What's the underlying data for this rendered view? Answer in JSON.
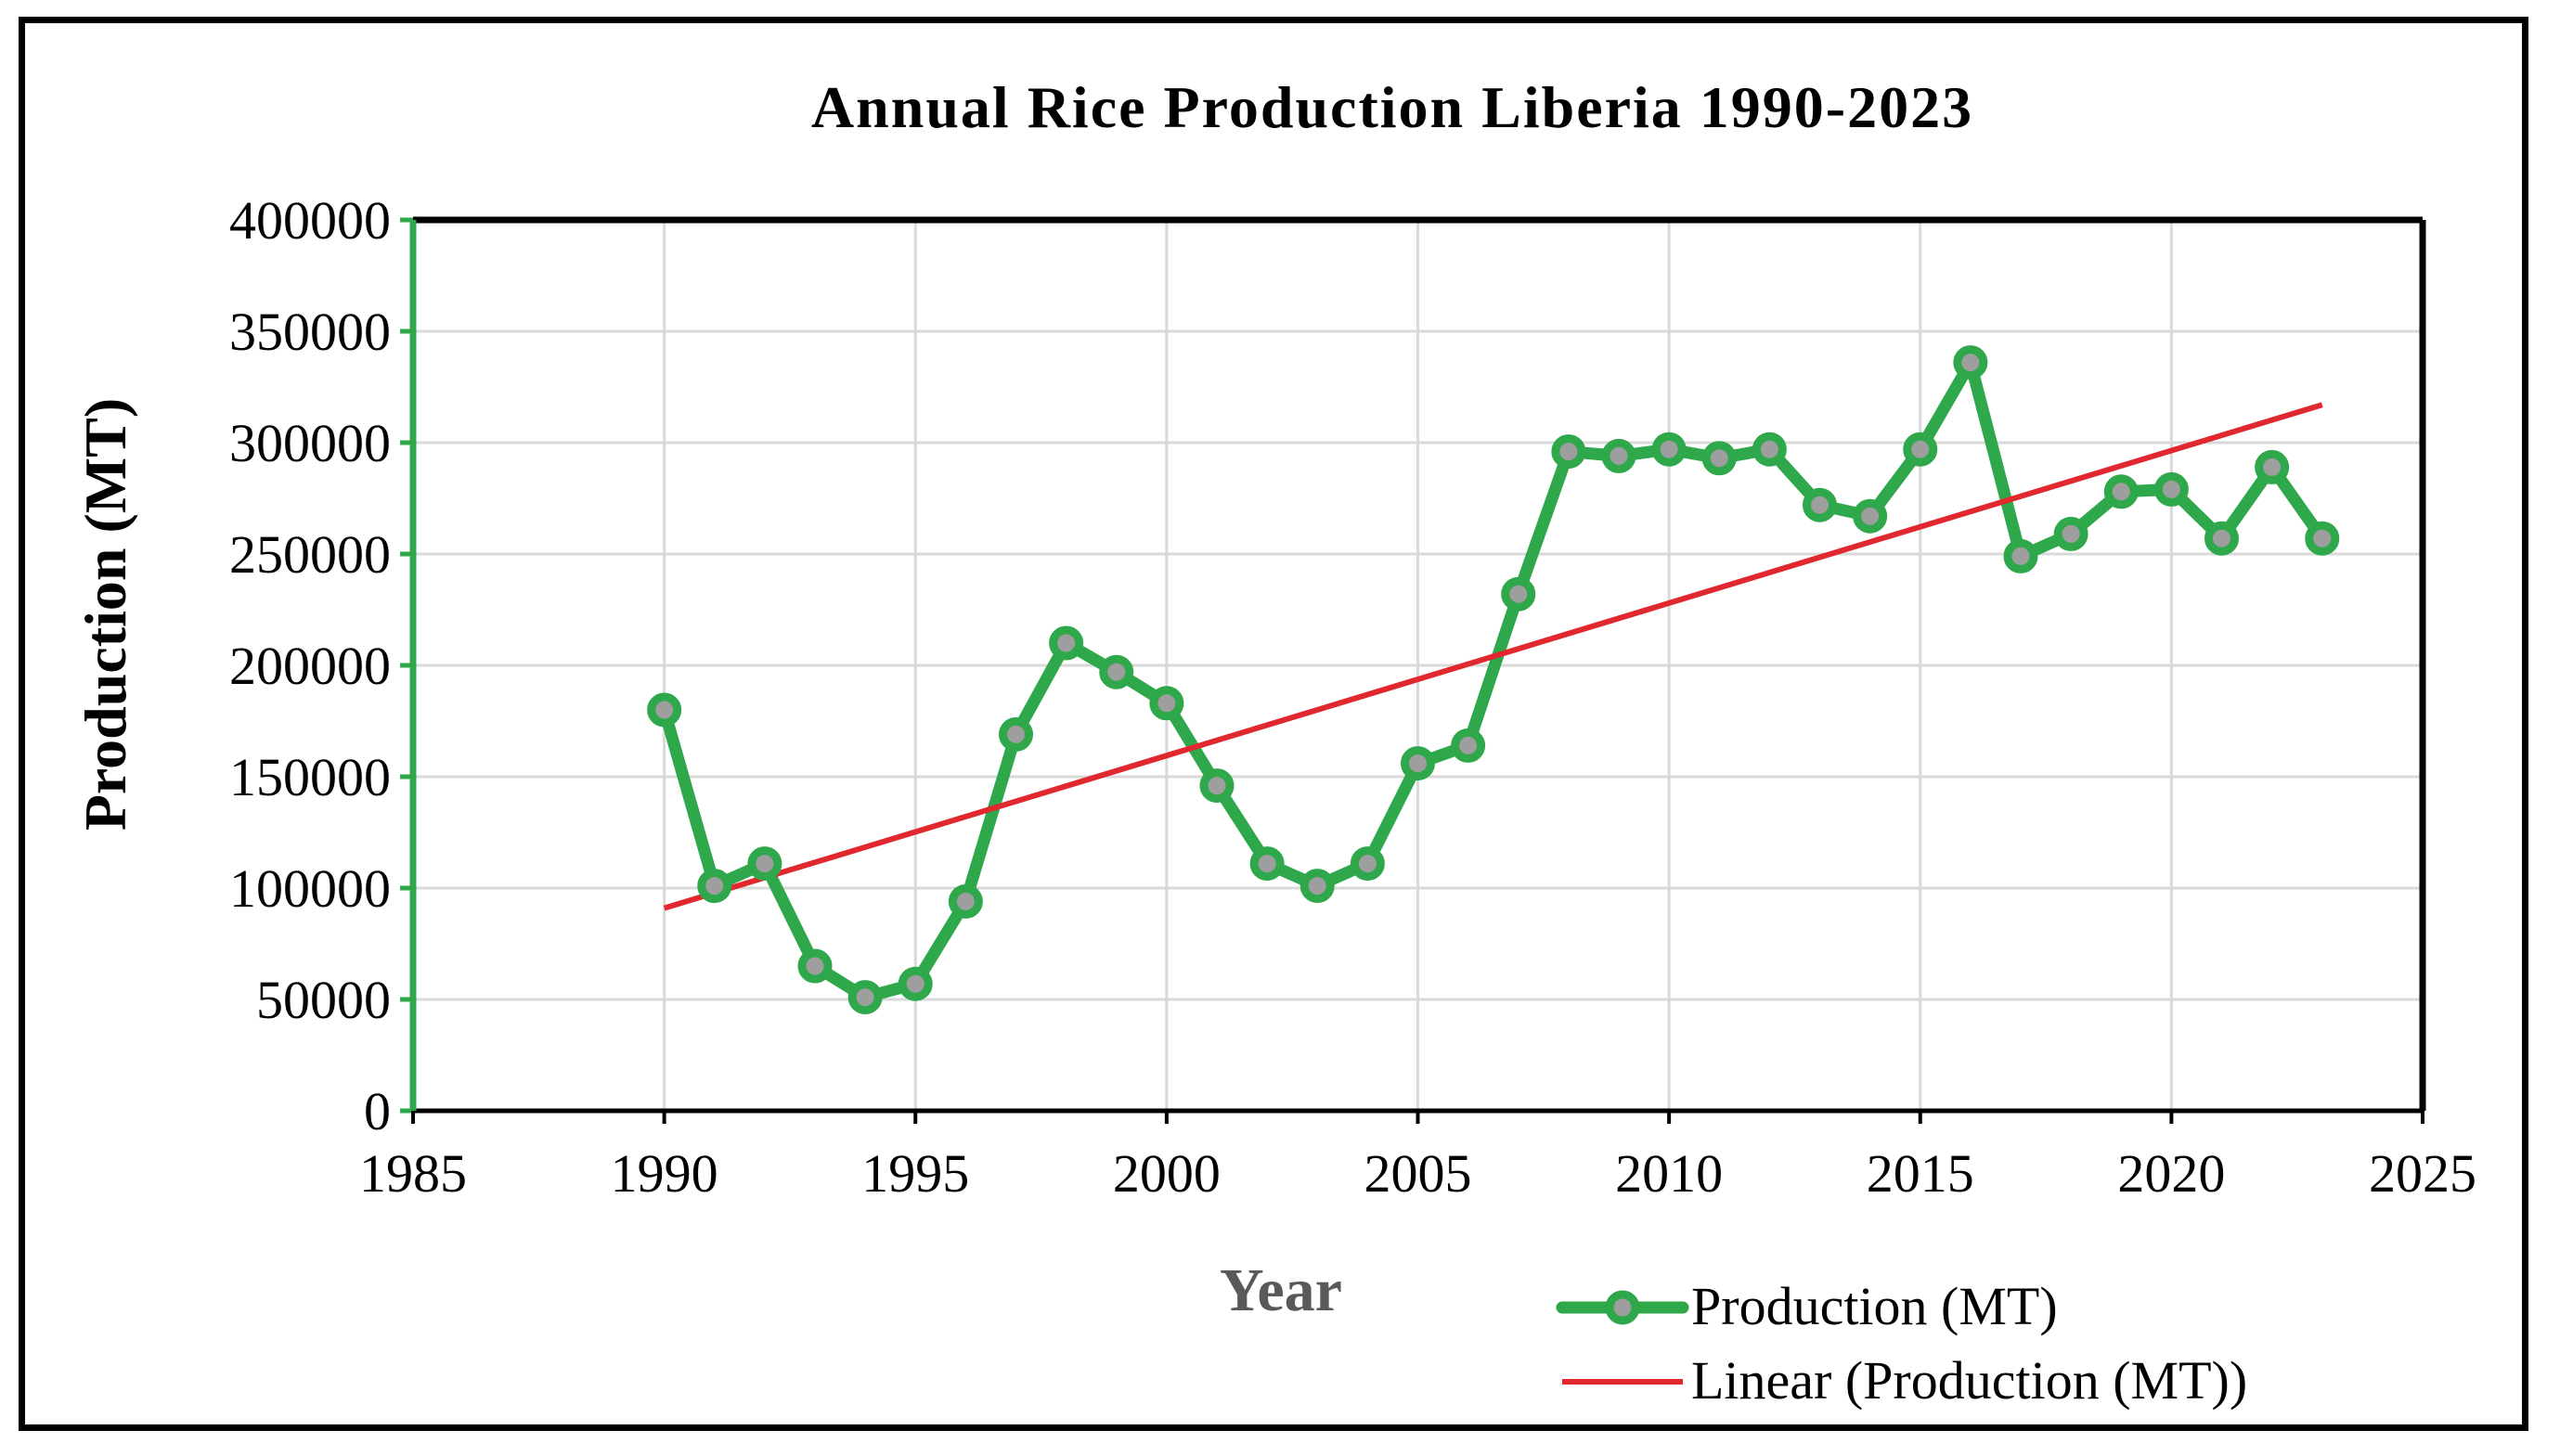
{
  "chart_data": {
    "type": "line",
    "title": "Annual Rice Production Liberia 1990-2023",
    "xlabel": "Year",
    "ylabel": "Production (MT)",
    "xlim": [
      1985,
      2025
    ],
    "ylim": [
      0,
      400000
    ],
    "xticks": [
      1985,
      1990,
      1995,
      2000,
      2005,
      2010,
      2015,
      2020,
      2025
    ],
    "yticks": [
      0,
      50000,
      100000,
      150000,
      200000,
      250000,
      300000,
      350000,
      400000
    ],
    "grid": true,
    "legend_position": "bottom-right",
    "series": [
      {
        "name": "Production (MT)",
        "color": "#2EA84A",
        "marker": "circle",
        "x": [
          1990,
          1991,
          1992,
          1993,
          1994,
          1995,
          1996,
          1997,
          1998,
          1999,
          2000,
          2001,
          2002,
          2003,
          2004,
          2005,
          2006,
          2007,
          2008,
          2009,
          2010,
          2011,
          2012,
          2013,
          2014,
          2015,
          2016,
          2017,
          2018,
          2019,
          2020,
          2021,
          2022,
          2023
        ],
        "y": [
          180000,
          101000,
          111000,
          65000,
          51000,
          57000,
          94000,
          169000,
          210000,
          197000,
          183000,
          146000,
          111000,
          101000,
          111000,
          156000,
          164000,
          232000,
          296000,
          294000,
          297000,
          293000,
          297000,
          272000,
          267000,
          297000,
          336000,
          249000,
          259000,
          278000,
          279000,
          257000,
          289000,
          257000
        ]
      },
      {
        "name": "Linear (Production (MT))",
        "color": "#E0282E",
        "marker": "none",
        "x": [
          1990,
          2023
        ],
        "y": [
          91000,
          317000
        ]
      }
    ]
  }
}
